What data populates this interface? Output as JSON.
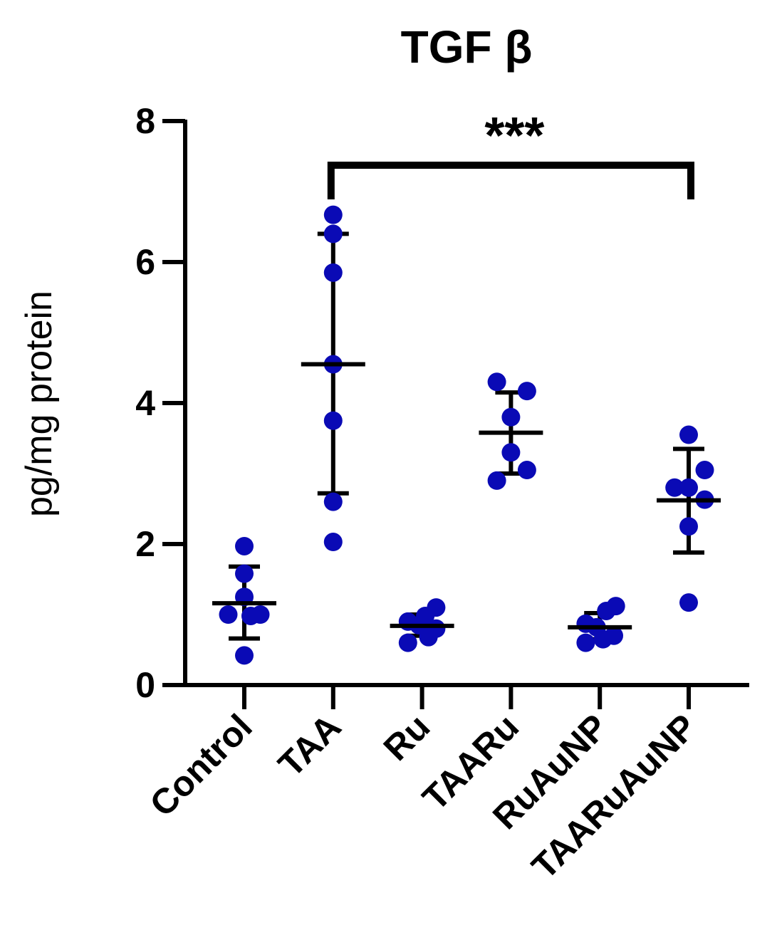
{
  "chart_data": {
    "type": "scatter",
    "title": "TGF β",
    "xlabel": "",
    "ylabel": "pg/mg protein",
    "ylim": [
      0,
      8
    ],
    "yticks": [
      0,
      2,
      4,
      6,
      8
    ],
    "grid": false,
    "categories": [
      "Control",
      "TAA",
      "Ru",
      "TAARu",
      "RuAuNP",
      "TAARuAuNP"
    ],
    "colors": {
      "points": "#0a0ab5",
      "lines": "#000000"
    },
    "groups": [
      {
        "name": "Control",
        "points": [
          [
            0,
            1.97
          ],
          [
            0,
            1.58
          ],
          [
            0,
            1.25
          ],
          [
            -0.25,
            1.0
          ],
          [
            0.1,
            0.98
          ],
          [
            0.25,
            1.0
          ],
          [
            0,
            0.42
          ]
        ],
        "mean": 1.16,
        "err_low": 0.66,
        "err_high": 1.68
      },
      {
        "name": "TAA",
        "points": [
          [
            0,
            6.67
          ],
          [
            0,
            6.4
          ],
          [
            0,
            5.85
          ],
          [
            0,
            4.55
          ],
          [
            0,
            3.75
          ],
          [
            0,
            2.6
          ],
          [
            0,
            2.03
          ]
        ],
        "mean": 4.55,
        "err_low": 2.72,
        "err_high": 6.4
      },
      {
        "name": "Ru",
        "points": [
          [
            -0.22,
            0.9
          ],
          [
            -0.22,
            0.6
          ],
          [
            -0.05,
            0.85
          ],
          [
            0.05,
            0.98
          ],
          [
            0.22,
            1.1
          ],
          [
            0.22,
            0.8
          ],
          [
            0.1,
            0.68
          ]
        ],
        "mean": 0.84,
        "err_low": 0.7,
        "err_high": 1.0
      },
      {
        "name": "TAARu",
        "points": [
          [
            -0.22,
            4.3
          ],
          [
            0.25,
            4.17
          ],
          [
            0,
            3.8
          ],
          [
            0,
            3.3
          ],
          [
            -0.22,
            2.9
          ],
          [
            0.25,
            3.05
          ]
        ],
        "mean": 3.58,
        "err_low": 3.0,
        "err_high": 4.15
      },
      {
        "name": "RuAuNP",
        "points": [
          [
            -0.22,
            0.87
          ],
          [
            -0.22,
            0.6
          ],
          [
            -0.05,
            0.82
          ],
          [
            0.1,
            1.05
          ],
          [
            0.25,
            1.12
          ],
          [
            0.22,
            0.7
          ],
          [
            0.05,
            0.65
          ]
        ],
        "mean": 0.82,
        "err_low": 0.65,
        "err_high": 1.02
      },
      {
        "name": "TAARuAuNP",
        "points": [
          [
            0,
            3.55
          ],
          [
            0.25,
            3.05
          ],
          [
            -0.22,
            2.8
          ],
          [
            0,
            2.8
          ],
          [
            0.25,
            2.63
          ],
          [
            0,
            2.25
          ],
          [
            0,
            1.17
          ]
        ],
        "mean": 2.62,
        "err_low": 1.88,
        "err_high": 3.35
      }
    ],
    "significance": {
      "from": "TAA",
      "to": "TAARuAuNP",
      "label": "***"
    }
  }
}
